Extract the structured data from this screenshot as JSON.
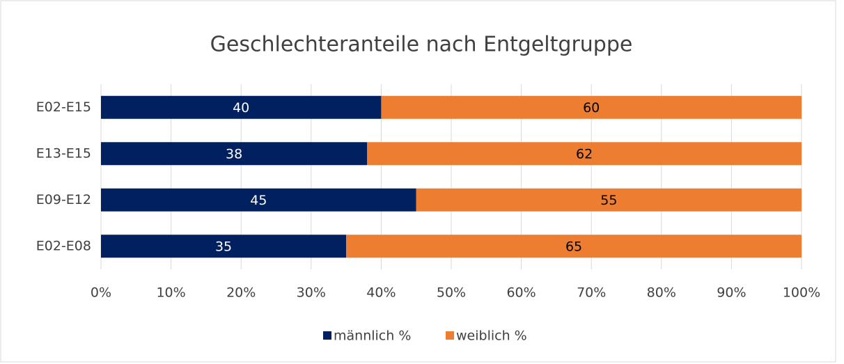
{
  "chart_data": {
    "type": "stacked_barh",
    "title": "Geschlechteranteile nach Entgeltgruppe",
    "categories": [
      "E02-E15",
      "E13-E15",
      "E09-E12",
      "E02-E08"
    ],
    "series": [
      {
        "name": "männlich %",
        "color": "#002060",
        "label_color": "#ffffff",
        "values": [
          40,
          38,
          45,
          35
        ]
      },
      {
        "name": "weiblich %",
        "color": "#ed7d31",
        "label_color": "#000000",
        "values": [
          60,
          62,
          55,
          65
        ]
      }
    ],
    "xlim": [
      0,
      100
    ],
    "xticks": [
      {
        "value": 0,
        "label": "0%"
      },
      {
        "value": 10,
        "label": "10%"
      },
      {
        "value": 20,
        "label": "20%"
      },
      {
        "value": 30,
        "label": "30%"
      },
      {
        "value": 40,
        "label": "40%"
      },
      {
        "value": 50,
        "label": "50%"
      },
      {
        "value": 60,
        "label": "60%"
      },
      {
        "value": 70,
        "label": "70%"
      },
      {
        "value": 80,
        "label": "80%"
      },
      {
        "value": 90,
        "label": "90%"
      },
      {
        "value": 100,
        "label": "100%"
      }
    ],
    "grid": true,
    "legend": "bottom"
  }
}
